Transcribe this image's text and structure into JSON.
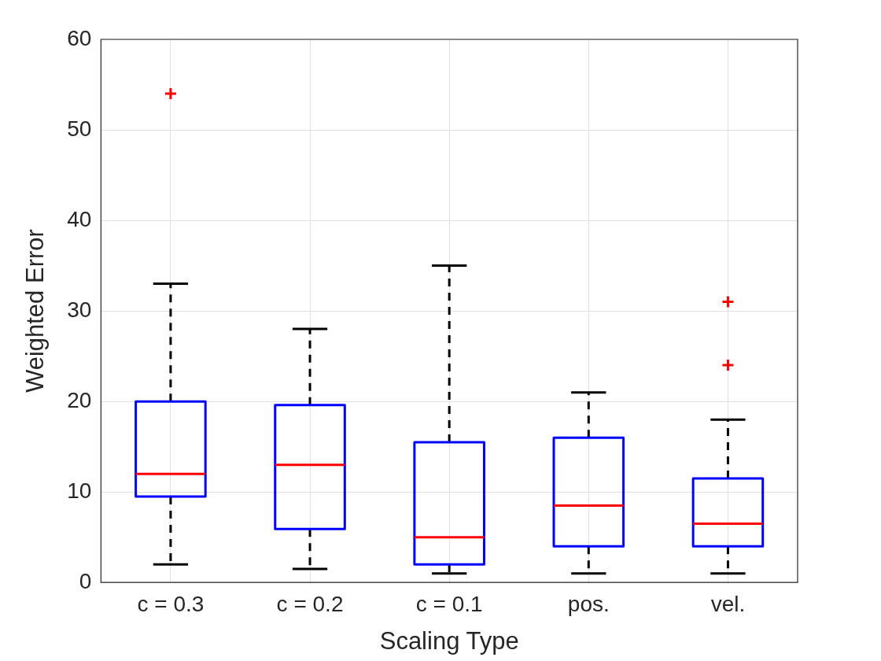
{
  "chart_data": {
    "type": "box",
    "xlabel": "Scaling Type",
    "ylabel": "Weighted Error",
    "categories": [
      "c = 0.3",
      "c = 0.2",
      "c = 0.1",
      "pos.",
      "vel."
    ],
    "ylim": [
      0,
      60
    ],
    "yticks": [
      0,
      10,
      20,
      30,
      40,
      50,
      60
    ],
    "grid": true,
    "marker": "cross",
    "series": [
      {
        "color": "#0000ff",
        "boxes": [
          {
            "low": 2,
            "q1": 9.5,
            "median": 12,
            "q3": 20,
            "high": 33,
            "outliers": [
              54
            ]
          },
          {
            "low": 1.5,
            "q1": 5.9,
            "median": 13,
            "q3": 19.6,
            "high": 28
          },
          {
            "low": 1,
            "q1": 2,
            "median": 5,
            "q3": 15.5,
            "high": 35
          },
          {
            "low": 1,
            "q1": 4,
            "median": 8.5,
            "q3": 16,
            "high": 21
          },
          {
            "low": 1,
            "q1": 4,
            "median": 6.5,
            "q3": 11.5,
            "high": 18,
            "outliers": [
              24,
              31
            ]
          }
        ]
      }
    ]
  }
}
